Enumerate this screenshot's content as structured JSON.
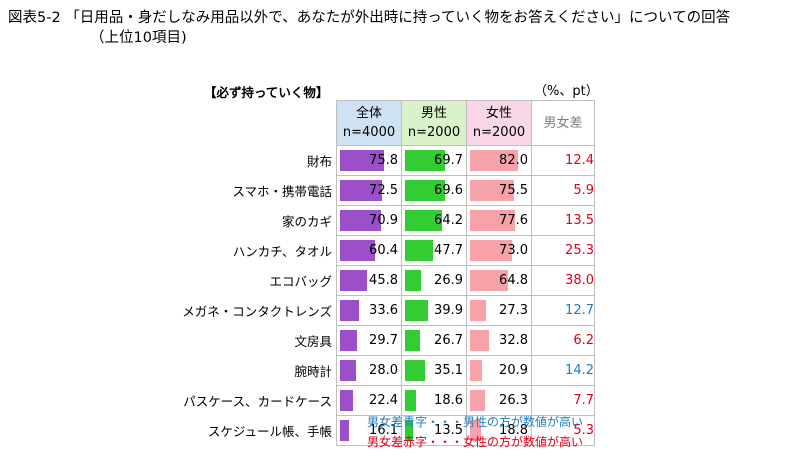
{
  "title": {
    "line1": "図表5-2 「日用品・身だしなみ用品以外で、あなたが外出時に持っていく物をお答えください」についての回答",
    "line2": "（上位10項目)"
  },
  "subheading": "【必ず持っていく物】",
  "unit": "（%、pt）",
  "colors": {
    "all_bar": "#9b4fc9",
    "male_bar": "#33cc33",
    "female_bar": "#f7a1a8",
    "blue_text": "#1f7cc4",
    "red_text": "#e0001b"
  },
  "chart_data": {
    "type": "bar",
    "header": {
      "all": [
        "全体",
        "n=4000"
      ],
      "male": [
        "男性",
        "n=2000"
      ],
      "female": [
        "女性",
        "n=2000"
      ],
      "diff": "男女差"
    },
    "categories": [
      "財布",
      "スマホ・携帯電話",
      "家のカギ",
      "ハンカチ、タオル",
      "エコバッグ",
      "メガネ・コンタクトレンズ",
      "文房具",
      "腕時計",
      "パスケース、カードケース",
      "スケジュール帳、手帳"
    ],
    "series": [
      {
        "name": "全体",
        "values": [
          "75.8",
          "72.5",
          "70.9",
          "60.4",
          "45.8",
          "33.6",
          "29.7",
          "28.0",
          "22.4",
          "16.1"
        ]
      },
      {
        "name": "男性",
        "values": [
          "69.7",
          "69.6",
          "64.2",
          "47.7",
          "26.9",
          "39.9",
          "26.7",
          "35.1",
          "18.6",
          "13.5"
        ]
      },
      {
        "name": "女性",
        "values": [
          "82.0",
          "75.5",
          "77.6",
          "73.0",
          "64.8",
          "27.3",
          "32.8",
          "20.9",
          "26.3",
          "18.8"
        ]
      }
    ],
    "diff": [
      "12.4",
      "5.9",
      "13.5",
      "25.3",
      "38.0",
      "12.7",
      "6.2",
      "14.2",
      "7.7",
      "5.3"
    ],
    "diff_color": [
      "red",
      "red",
      "red",
      "red",
      "red",
      "blue",
      "red",
      "blue",
      "red",
      "red"
    ],
    "ylim": [
      0,
      100
    ]
  },
  "notes": {
    "blue": "男女差青字・・・男性の方が数値が高い",
    "red": "男女差赤字・・・女性の方が数値が高い"
  }
}
